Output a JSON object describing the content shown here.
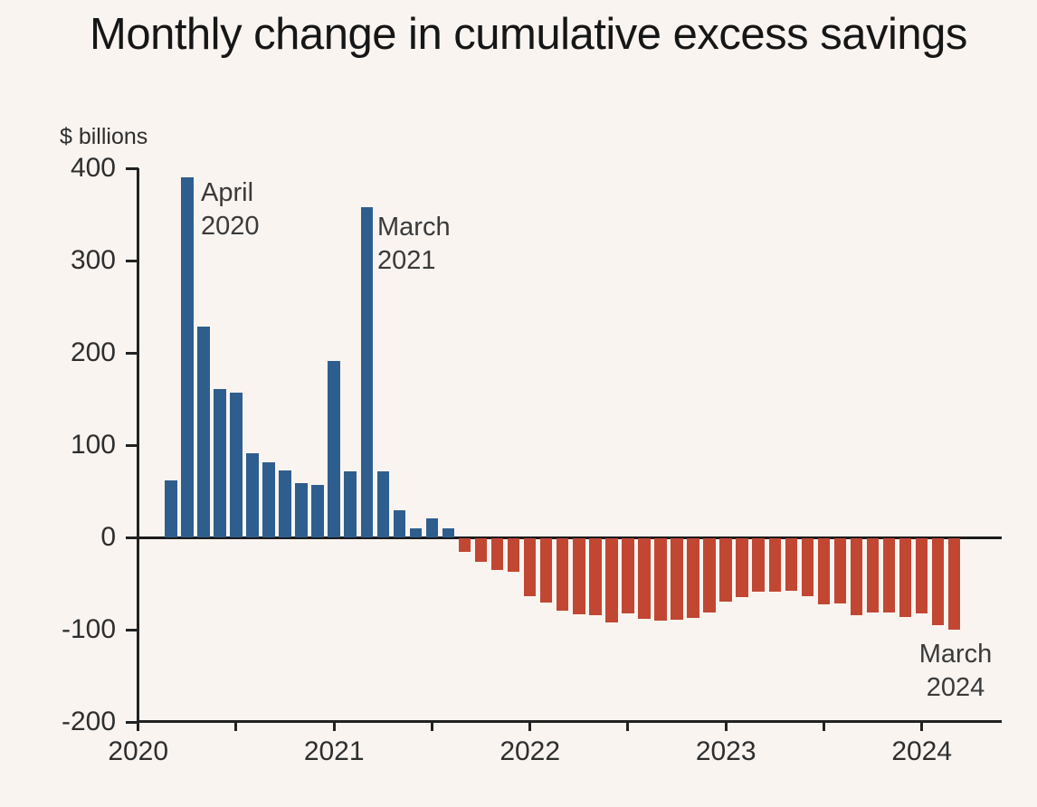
{
  "title": "Monthly change in cumulative excess savings",
  "colors": {
    "background": "#faf4f0",
    "positive_bar": "#2e5e8e",
    "negative_bar": "#c14733",
    "axis": "#222222",
    "text": "#2e2e2e"
  },
  "chart_data": {
    "type": "bar",
    "title": "Monthly change in cumulative excess savings",
    "unit_label": "$ billions",
    "ylabel": "$ billions",
    "xlabel": "",
    "ylim": [
      -200,
      400
    ],
    "y_ticks": [
      400,
      300,
      200,
      100,
      0,
      -100,
      -200
    ],
    "x_tick_years": [
      "2020",
      "2021",
      "2022",
      "2023",
      "2024"
    ],
    "grid": "off",
    "legend": "none",
    "positive_color": "#2e5e8e",
    "negative_color": "#c14733",
    "x": [
      "Mar 2020",
      "Apr 2020",
      "May 2020",
      "Jun 2020",
      "Jul 2020",
      "Aug 2020",
      "Sep 2020",
      "Oct 2020",
      "Nov 2020",
      "Dec 2020",
      "Jan 2021",
      "Feb 2021",
      "Mar 2021",
      "Apr 2021",
      "May 2021",
      "Jun 2021",
      "Jul 2021",
      "Aug 2021",
      "Sep 2021",
      "Oct 2021",
      "Nov 2021",
      "Dec 2021",
      "Jan 2022",
      "Feb 2022",
      "Mar 2022",
      "Apr 2022",
      "May 2022",
      "Jun 2022",
      "Jul 2022",
      "Aug 2022",
      "Sep 2022",
      "Oct 2022",
      "Nov 2022",
      "Dec 2022",
      "Jan 2023",
      "Feb 2023",
      "Mar 2023",
      "Apr 2023",
      "May 2023",
      "Jun 2023",
      "Jul 2023",
      "Aug 2023",
      "Sep 2023",
      "Oct 2023",
      "Nov 2023",
      "Dec 2023",
      "Jan 2024",
      "Feb 2024",
      "Mar 2024"
    ],
    "values": [
      62,
      390,
      228,
      161,
      157,
      91,
      81,
      73,
      59,
      57,
      191,
      72,
      358,
      72,
      29,
      10,
      21,
      10,
      -15,
      -25,
      -34,
      -36,
      -63,
      -70,
      -78,
      -82,
      -83,
      -91,
      -81,
      -87,
      -89,
      -88,
      -86,
      -80,
      -69,
      -64,
      -58,
      -58,
      -57,
      -63,
      -72,
      -71,
      -83,
      -80,
      -80,
      -85,
      -81,
      -94,
      -99
    ],
    "annotations": [
      {
        "line1": "April",
        "line2": "2020",
        "target": "Apr 2020"
      },
      {
        "line1": "March",
        "line2": "2021",
        "target": "Mar 2021"
      },
      {
        "line1": "March",
        "line2": "2024",
        "target": "Mar 2024"
      }
    ]
  }
}
